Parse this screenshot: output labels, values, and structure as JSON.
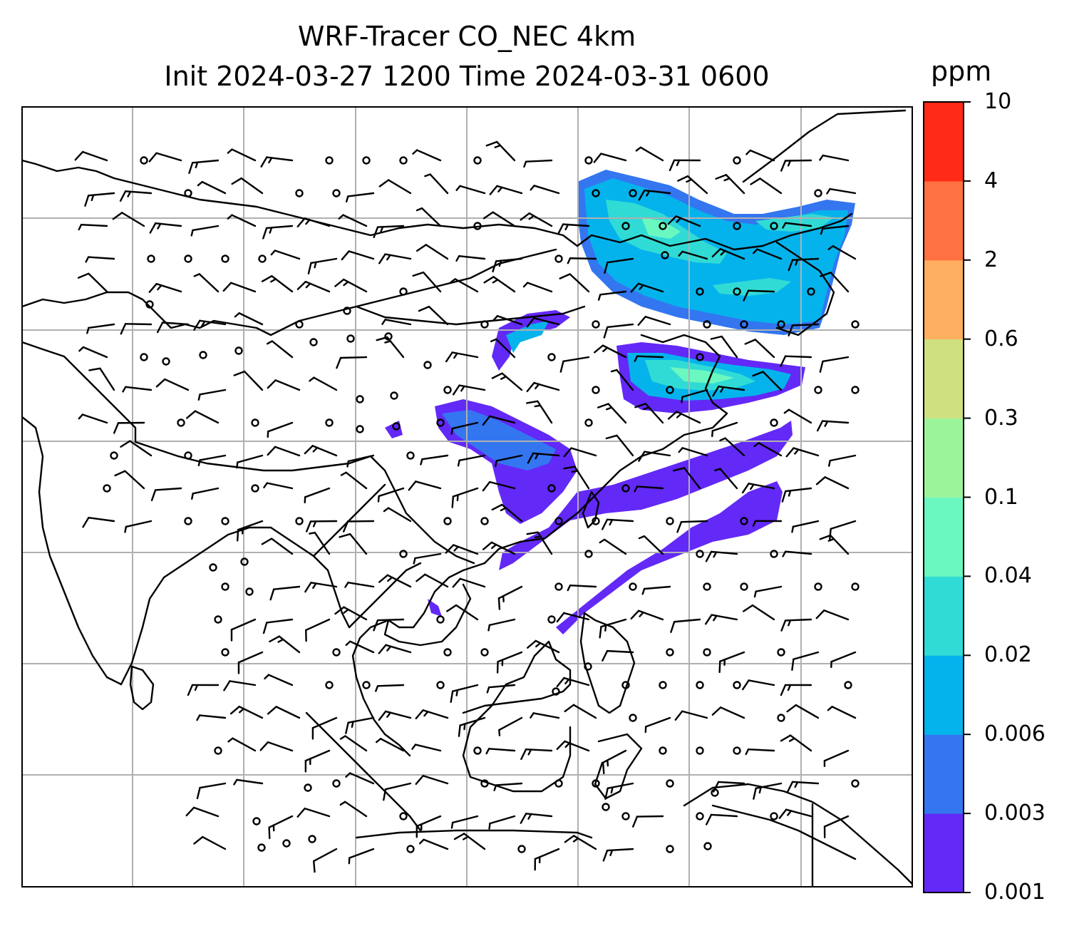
{
  "title": {
    "line1": "WRF-Tracer CO_NEC 4km",
    "line2": "Init 2024-03-27 1200 Time 2024-03-31 0600"
  },
  "colorbar": {
    "unit": "ppm",
    "ticks": [
      "0.001",
      "0.003",
      "0.006",
      "0.02",
      "0.04",
      "0.1",
      "0.3",
      "0.6",
      "2",
      "4",
      "10"
    ],
    "colors": [
      "#6329f7",
      "#3376f0",
      "#05b3ec",
      "#31dbd5",
      "#6bf8c0",
      "#9cf49a",
      "#cfe081",
      "#feaf5f",
      "#ff7140",
      "#ff2a17"
    ]
  },
  "map": {
    "features": [
      "coastlines",
      "country-borders",
      "lat-lon-gridlines",
      "wind-barbs",
      "tracer-plume"
    ],
    "gridline_color": "#b0b0b0",
    "plume_colors": {
      "lowest": "#6329f7",
      "low": "#3376f0",
      "mid": "#05b3ec",
      "upper": "#31dbd5",
      "peak": "#6bf8c0"
    }
  }
}
